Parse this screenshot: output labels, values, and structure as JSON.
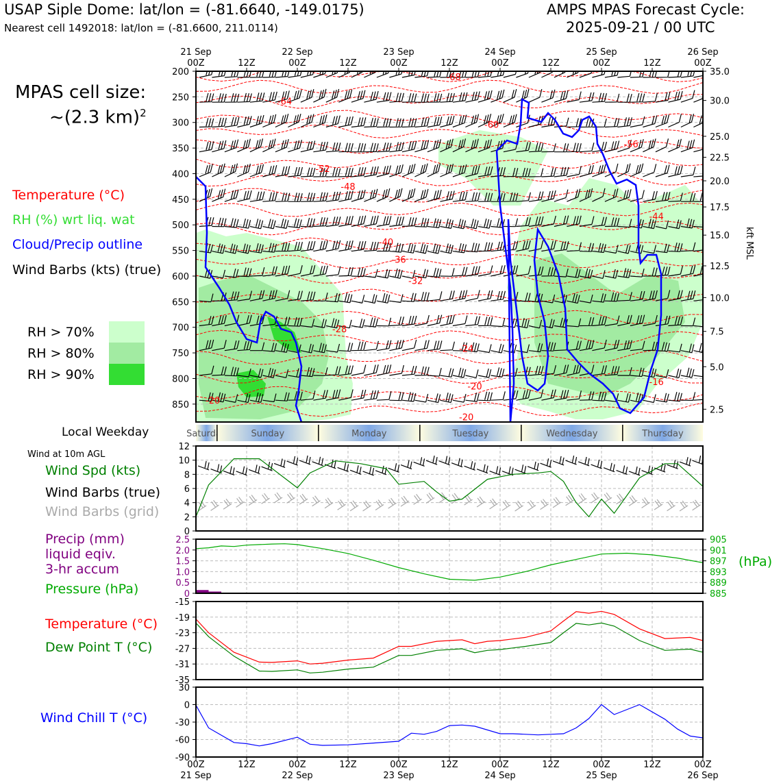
{
  "header": {
    "title": "USAP Siple Dome: lat/lon = (-81.6640, -149.0175)",
    "subtitle": "Nearest cell 1492018: lat/lon = (-81.6600, 211.0114)",
    "cycle_line1": "AMPS MPAS Forecast Cycle:",
    "cycle_line2": "2025-09-21 / 00 UTC"
  },
  "cell_size": {
    "label": "MPAS cell size:",
    "value": "~(2.3 km)",
    "exponent": "2"
  },
  "legend": {
    "temperature": "Temperature (°C)",
    "rh": "RH (%) wrt liq. wat",
    "cloud": "Cloud/Precip outline",
    "barbs": "Wind Barbs (kts) (true)"
  },
  "rh_key": [
    {
      "label": "RH > 70%",
      "color": "#ccffcc"
    },
    {
      "label": "RH > 80%",
      "color": "#a2eba2"
    },
    {
      "label": "RH > 90%",
      "color": "#33dd33"
    }
  ],
  "colors": {
    "temp": "#ff0000",
    "dew": "#008000",
    "cloud": "#0000ff",
    "precip": "#800080",
    "pressure": "#00aa00",
    "chill": "#0000ff",
    "barb_grid": "#aaaaaa"
  },
  "chart_data": [
    {
      "id": "upper-air",
      "type": "heatmap",
      "top_ticks": [
        [
          "21 Sep",
          "00Z"
        ],
        [
          "",
          "12Z"
        ],
        [
          "22 Sep",
          "00Z"
        ],
        [
          "",
          "12Z"
        ],
        [
          "23 Sep",
          "00Z"
        ],
        [
          "",
          "12Z"
        ],
        [
          "24 Sep",
          "00Z"
        ],
        [
          "",
          "12Z"
        ],
        [
          "25 Sep",
          "00Z"
        ],
        [
          "",
          "12Z"
        ],
        [
          "26 Sep",
          "00Z"
        ]
      ],
      "xlim_hours": [
        0,
        120
      ],
      "ylabel_left": "hPa",
      "yticks_left": [
        200,
        250,
        300,
        350,
        400,
        450,
        500,
        550,
        600,
        650,
        700,
        750,
        800,
        850
      ],
      "ylim_hpa": [
        200,
        885
      ],
      "ylabel_right": "kft MSL",
      "yticks_right": [
        {
          "label": "35.0",
          "hpa": 200
        },
        {
          "label": "30.0",
          "hpa": 257
        },
        {
          "label": "25.0",
          "hpa": 327
        },
        {
          "label": "22.5",
          "hpa": 368
        },
        {
          "label": "20.0",
          "hpa": 414
        },
        {
          "label": "17.5",
          "hpa": 465
        },
        {
          "label": "15.0",
          "hpa": 520
        },
        {
          "label": "12.5",
          "hpa": 580
        },
        {
          "label": "10.0",
          "hpa": 642
        },
        {
          "label": "7.5",
          "hpa": 708
        },
        {
          "label": "5.0",
          "hpa": 777
        },
        {
          "label": "2.5",
          "hpa": 860
        }
      ],
      "temperature_contour_labels": [
        {
          "label": "-68",
          "t": 61,
          "hpa": 211
        },
        {
          "label": "-64",
          "t": 21,
          "hpa": 258
        },
        {
          "label": "-60",
          "t": 70,
          "hpa": 304
        },
        {
          "label": "-56",
          "t": 103,
          "hpa": 342
        },
        {
          "label": "-52",
          "t": 30,
          "hpa": 390
        },
        {
          "label": "-48",
          "t": 36,
          "hpa": 425
        },
        {
          "label": "-44",
          "t": 109,
          "hpa": 483
        },
        {
          "label": "-40",
          "t": 45,
          "hpa": 533
        },
        {
          "label": "-36",
          "t": 48,
          "hpa": 567
        },
        {
          "label": "-32",
          "t": 52,
          "hpa": 609
        },
        {
          "label": "-28",
          "t": 34,
          "hpa": 703
        },
        {
          "label": "-24",
          "t": 64,
          "hpa": 741
        },
        {
          "label": "-20",
          "t": 66,
          "hpa": 815
        },
        {
          "label": "-20",
          "t": 64,
          "hpa": 875
        },
        {
          "label": "-20",
          "t": 4,
          "hpa": 842
        },
        {
          "label": "-16",
          "t": 109,
          "hpa": 806
        }
      ]
    },
    {
      "id": "weekday-strip",
      "type": "table",
      "title": "Local Weekday",
      "days": [
        "Saturday",
        "Sunday",
        "Monday",
        "Tuesday",
        "Wednesday",
        "Thursday"
      ]
    },
    {
      "id": "wind-10m",
      "type": "line",
      "title": "Wind at 10m AGL",
      "series_labels": [
        "Wind Spd (kts)",
        "Wind Barbs (true)",
        "Wind Barbs (grid)"
      ],
      "yticks": [
        "0",
        "2",
        "4",
        "6",
        "8",
        "10",
        "12"
      ],
      "ylim": [
        0,
        12
      ],
      "x_hours": [
        0,
        3,
        9,
        15,
        24,
        27,
        33,
        39,
        45,
        48,
        54,
        57,
        60,
        63,
        69,
        75,
        81,
        84,
        87,
        90,
        93,
        96,
        99,
        105,
        111,
        114,
        120
      ],
      "wind_speed_kts": [
        2,
        6.5,
        10.2,
        10.2,
        6.1,
        8.2,
        9.9,
        9.5,
        8.8,
        6.6,
        7,
        5.5,
        4.2,
        4.5,
        7.3,
        8,
        8.2,
        8.4,
        7,
        4,
        2,
        4.5,
        2.5,
        7.5,
        9.5,
        9.5,
        6.3
      ]
    },
    {
      "id": "precip-pressure",
      "type": "line",
      "series_labels": [
        "Precip (mm)",
        "liquid eqiv.",
        "3-hr accum",
        "Pressure (hPa)"
      ],
      "yticks_left": [
        "0",
        "0.5",
        "1.0",
        "1.5",
        "2.0",
        "2.5"
      ],
      "ylim_precip": [
        0,
        2.5
      ],
      "yticks_right": [
        "885",
        "889",
        "893",
        "897",
        "901",
        "905"
      ],
      "ylim_pressure": [
        885,
        905
      ],
      "ylabel_right": "(hPa)",
      "precip_bars_mm": [
        {
          "t0": 0,
          "t1": 3,
          "value": 0.15
        },
        {
          "t0": 3,
          "t1": 6,
          "value": 0.08
        }
      ],
      "x_hours": [
        0,
        3,
        6,
        9,
        12,
        15,
        18,
        21,
        24,
        30,
        36,
        42,
        48,
        54,
        60,
        66,
        72,
        78,
        84,
        90,
        96,
        102,
        108,
        114,
        120
      ],
      "pressure_hpa": [
        901.5,
        901.8,
        902.5,
        902.3,
        902.8,
        903,
        903.2,
        903.3,
        903,
        901.5,
        899.7,
        897.2,
        894.5,
        892.2,
        890.2,
        889.8,
        891,
        893,
        895.5,
        897.5,
        899.5,
        899.8,
        899.2,
        898,
        896.3
      ]
    },
    {
      "id": "temp-dew",
      "type": "line",
      "series_labels": [
        "Temperature (°C)",
        "Dew Point T (°C)"
      ],
      "yticks": [
        "-35",
        "-31",
        "-27",
        "-23",
        "-19",
        "-15"
      ],
      "ylim": [
        -35,
        -15
      ],
      "x_hours": [
        0,
        3,
        9,
        15,
        18,
        24,
        27,
        30,
        36,
        42,
        48,
        51,
        57,
        63,
        66,
        69,
        72,
        75,
        78,
        84,
        87,
        90,
        93,
        96,
        99,
        105,
        111,
        117,
        120
      ],
      "temperature_c": [
        -19.5,
        -23,
        -28,
        -30.5,
        -30.6,
        -30.2,
        -31,
        -30.8,
        -30,
        -29.5,
        -26.5,
        -26.5,
        -25.2,
        -24.8,
        -25.8,
        -25.2,
        -25,
        -24.6,
        -24.2,
        -22.5,
        -20,
        -17.6,
        -18,
        -17.5,
        -18.3,
        -22,
        -24.5,
        -24.2,
        -25
      ]
    },
    {
      "id": "wind-chill",
      "type": "line",
      "series_labels": [
        "Wind Chill T (°C)"
      ],
      "yticks": [
        "-90",
        "-60",
        "-30",
        "0",
        "30"
      ],
      "ylim": [
        -90,
        30
      ],
      "x_hours": [
        0,
        3,
        9,
        12,
        15,
        18,
        24,
        27,
        30,
        36,
        42,
        48,
        51,
        54,
        57,
        60,
        63,
        66,
        72,
        75,
        78,
        81,
        84,
        87,
        90,
        93,
        96,
        99,
        105,
        111,
        114,
        117,
        120
      ],
      "wind_chill_c": [
        -1,
        -40,
        -65,
        -67,
        -71,
        -67,
        -56,
        -68,
        -70,
        -69,
        -66,
        -63,
        -49,
        -51,
        -46,
        -36,
        -35,
        -37,
        -50,
        -50,
        -51,
        -52,
        -51,
        -50,
        -40,
        -24,
        0,
        -17,
        0,
        -25,
        -42,
        -54,
        -57
      ]
    }
  ],
  "bottom_ticks": [
    [
      "00Z",
      "21 Sep"
    ],
    [
      "12Z",
      ""
    ],
    [
      "00Z",
      "22 Sep"
    ],
    [
      "12Z",
      ""
    ],
    [
      "00Z",
      "23 Sep"
    ],
    [
      "12Z",
      ""
    ],
    [
      "00Z",
      "24 Sep"
    ],
    [
      "12Z",
      ""
    ],
    [
      "00Z",
      "25 Sep"
    ],
    [
      "12Z",
      ""
    ],
    [
      "00Z",
      "26 Sep"
    ]
  ]
}
